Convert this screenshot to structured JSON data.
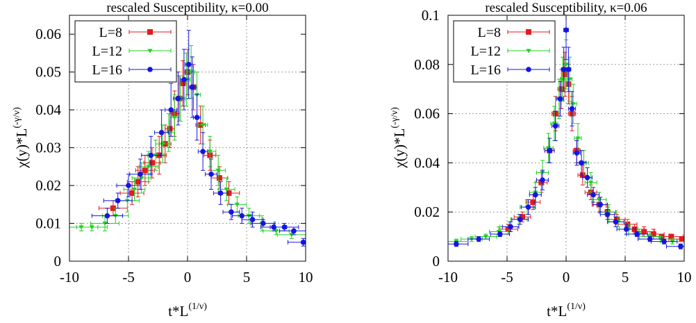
{
  "chart_data": [
    {
      "type": "scatter",
      "title": "rescaled Susceptibility, κ=0.00",
      "xlabel": "t*L",
      "xlabel_sup": "(1/ν)",
      "ylabel": "χ(y)*L",
      "ylabel_sup": "(-γ/ν)",
      "xlim": [
        -10,
        10
      ],
      "ylim": [
        0,
        0.065
      ],
      "xticks": [
        -10,
        -5,
        0,
        5,
        10
      ],
      "xtick_labels": [
        "-10",
        "-5",
        "0",
        "5",
        "10"
      ],
      "yticks": [
        0,
        0.01,
        0.02,
        0.03,
        0.04,
        0.05,
        0.06
      ],
      "ytick_labels": [
        "0",
        "0.01",
        "0.02",
        "0.03",
        "0.04",
        "0.05",
        "0.06"
      ],
      "grid": true,
      "legend_position": "top-left",
      "series": [
        {
          "name": "L=8",
          "color": "#e41a1c",
          "marker": "square",
          "x": [
            -6.3,
            -4.7,
            -4.2,
            -3.6,
            -3.0,
            -2.4,
            -1.9,
            -1.5,
            -1.1,
            -0.7,
            -0.4,
            0.0,
            0.5,
            1.1,
            1.9,
            2.7,
            3.5
          ],
          "y": [
            0.014,
            0.018,
            0.021,
            0.024,
            0.026,
            0.028,
            0.031,
            0.035,
            0.039,
            0.043,
            0.047,
            0.05,
            0.046,
            0.036,
            0.028,
            0.022,
            0.018
          ],
          "yerr": [
            0.002,
            0.003,
            0.004,
            0.004,
            0.004,
            0.005,
            0.005,
            0.005,
            0.006,
            0.006,
            0.006,
            0.006,
            0.006,
            0.005,
            0.004,
            0.003,
            0.003
          ],
          "xerr": [
            1.2,
            1.0,
            0.9,
            0.8,
            0.7,
            0.6,
            0.5,
            0.4,
            0.4,
            0.3,
            0.3,
            0.3,
            0.3,
            0.4,
            0.5,
            0.7,
            0.9
          ]
        },
        {
          "name": "L=12",
          "color": "#1dd11d",
          "marker": "triangle-down",
          "x": [
            -9.0,
            -8.1,
            -7.0,
            -6.1,
            -5.1,
            -4.5,
            -3.9,
            -3.3,
            -2.7,
            -2.1,
            -1.6,
            -1.1,
            -0.6,
            -0.1,
            0.3,
            0.8,
            1.3,
            1.9,
            2.6,
            3.3,
            4.2,
            5.2,
            6.3,
            7.5,
            8.8
          ],
          "y": [
            0.009,
            0.009,
            0.01,
            0.012,
            0.016,
            0.019,
            0.022,
            0.025,
            0.028,
            0.031,
            0.034,
            0.038,
            0.043,
            0.048,
            0.05,
            0.044,
            0.036,
            0.029,
            0.024,
            0.019,
            0.015,
            0.012,
            0.01,
            0.008,
            0.007
          ],
          "yerr": [
            0.001,
            0.001,
            0.002,
            0.002,
            0.003,
            0.003,
            0.004,
            0.004,
            0.004,
            0.005,
            0.005,
            0.006,
            0.006,
            0.007,
            0.007,
            0.006,
            0.005,
            0.004,
            0.004,
            0.003,
            0.002,
            0.002,
            0.002,
            0.001,
            0.001
          ],
          "xerr": [
            1.4,
            1.3,
            1.2,
            1.1,
            1.0,
            0.9,
            0.8,
            0.8,
            0.7,
            0.6,
            0.5,
            0.4,
            0.4,
            0.3,
            0.3,
            0.3,
            0.4,
            0.5,
            0.6,
            0.7,
            0.8,
            0.9,
            1.0,
            1.1,
            1.2
          ]
        },
        {
          "name": "L=16",
          "color": "#1515e0",
          "marker": "circle",
          "x": [
            -6.8,
            -5.9,
            -5.0,
            -4.0,
            -3.1,
            -2.2,
            -1.4,
            -0.8,
            -0.3,
            0.1,
            0.4,
            0.8,
            1.3,
            2.0,
            2.8,
            3.7,
            4.6,
            5.5,
            6.4,
            7.3,
            8.2,
            9.0,
            9.8
          ],
          "y": [
            0.012,
            0.016,
            0.02,
            0.023,
            0.028,
            0.034,
            0.04,
            0.043,
            0.048,
            0.052,
            0.046,
            0.038,
            0.029,
            0.023,
            0.018,
            0.013,
            0.012,
            0.011,
            0.01,
            0.009,
            0.009,
            0.008,
            0.005
          ],
          "yerr": [
            0.002,
            0.002,
            0.003,
            0.004,
            0.005,
            0.006,
            0.007,
            0.007,
            0.008,
            0.009,
            0.008,
            0.006,
            0.005,
            0.004,
            0.003,
            0.002,
            0.002,
            0.002,
            0.001,
            0.001,
            0.001,
            0.001,
            0.001
          ],
          "xerr": [
            1.3,
            1.2,
            1.0,
            0.9,
            0.8,
            0.6,
            0.5,
            0.4,
            0.3,
            0.3,
            0.3,
            0.3,
            0.4,
            0.5,
            0.6,
            0.7,
            0.8,
            0.9,
            1.0,
            1.1,
            1.2,
            1.2,
            1.3
          ]
        }
      ]
    },
    {
      "type": "scatter",
      "title": "rescaled Susceptibility, κ=0.06",
      "xlabel": "t*L",
      "xlabel_sup": "(1/ν)",
      "ylabel": "χ(y)*L",
      "ylabel_sup": "(-γ/ν)",
      "xlim": [
        -10,
        10
      ],
      "ylim": [
        0,
        0.1
      ],
      "xticks": [
        -10,
        -5,
        0,
        5,
        10
      ],
      "xtick_labels": [
        "-10",
        "-5",
        "0",
        "5",
        "10"
      ],
      "yticks": [
        0,
        0.02,
        0.04,
        0.06,
        0.08,
        0.1
      ],
      "ytick_labels": [
        "0",
        "0.02",
        "0.04",
        "0.06",
        "0.08",
        "0.1"
      ],
      "grid": true,
      "legend_position": "top-left",
      "series": [
        {
          "name": "L=8",
          "color": "#e41a1c",
          "marker": "square",
          "x": [
            -4.9,
            -3.7,
            -2.8,
            -2.1,
            -1.4,
            -0.9,
            -0.4,
            -0.1,
            0.2,
            0.5,
            0.9,
            1.4,
            2.1,
            2.8,
            3.5,
            4.3,
            5.2,
            5.8,
            6.6,
            7.4,
            8.1,
            8.9,
            9.8
          ],
          "y": [
            0.013,
            0.018,
            0.024,
            0.032,
            0.045,
            0.06,
            0.07,
            0.076,
            0.072,
            0.06,
            0.045,
            0.035,
            0.028,
            0.023,
            0.02,
            0.017,
            0.015,
            0.013,
            0.012,
            0.011,
            0.01,
            0.01,
            0.009
          ],
          "yerr": [
            0.002,
            0.002,
            0.003,
            0.004,
            0.005,
            0.007,
            0.008,
            0.009,
            0.008,
            0.007,
            0.005,
            0.004,
            0.003,
            0.003,
            0.002,
            0.002,
            0.002,
            0.002,
            0.002,
            0.002,
            0.001,
            0.001,
            0.001
          ],
          "xerr": [
            0.8,
            0.7,
            0.6,
            0.5,
            0.4,
            0.3,
            0.3,
            0.2,
            0.2,
            0.3,
            0.3,
            0.4,
            0.5,
            0.6,
            0.7,
            0.7,
            0.8,
            0.8,
            0.9,
            0.9,
            1.0,
            1.0,
            1.1
          ]
        },
        {
          "name": "L=12",
          "color": "#1dd11d",
          "marker": "triangle-down",
          "x": [
            -9.3,
            -8.0,
            -6.8,
            -5.7,
            -4.8,
            -4.0,
            -3.3,
            -2.6,
            -2.0,
            -1.5,
            -1.0,
            -0.6,
            -0.3,
            0.0,
            0.3,
            0.6,
            1.0,
            1.5,
            2.1,
            2.8,
            3.6,
            4.4,
            5.3,
            6.2,
            7.1,
            8.0,
            9.0
          ],
          "y": [
            0.008,
            0.009,
            0.01,
            0.012,
            0.014,
            0.017,
            0.022,
            0.028,
            0.036,
            0.046,
            0.056,
            0.066,
            0.074,
            0.08,
            0.074,
            0.064,
            0.05,
            0.04,
            0.032,
            0.025,
            0.02,
            0.016,
            0.013,
            0.011,
            0.01,
            0.009,
            0.008
          ],
          "yerr": [
            0.001,
            0.001,
            0.001,
            0.002,
            0.002,
            0.002,
            0.003,
            0.004,
            0.005,
            0.006,
            0.007,
            0.008,
            0.009,
            0.01,
            0.009,
            0.008,
            0.006,
            0.005,
            0.004,
            0.003,
            0.003,
            0.002,
            0.002,
            0.002,
            0.001,
            0.001,
            0.001
          ],
          "xerr": [
            1.0,
            0.9,
            0.9,
            0.8,
            0.8,
            0.7,
            0.6,
            0.5,
            0.5,
            0.4,
            0.3,
            0.3,
            0.2,
            0.2,
            0.2,
            0.3,
            0.3,
            0.4,
            0.5,
            0.6,
            0.7,
            0.8,
            0.8,
            0.9,
            0.9,
            1.0,
            1.0
          ]
        },
        {
          "name": "L=16",
          "color": "#1515e0",
          "marker": "circle",
          "x": [
            -9.3,
            -7.4,
            -5.6,
            -4.7,
            -3.9,
            -3.2,
            -2.6,
            -2.0,
            -1.4,
            -0.9,
            -0.5,
            -0.2,
            0.0,
            0.2,
            0.5,
            0.9,
            1.3,
            1.8,
            2.3,
            2.9,
            3.5,
            4.2,
            5.1,
            6.0,
            7.1,
            8.3,
            9.7
          ],
          "y": [
            0.007,
            0.009,
            0.011,
            0.014,
            0.017,
            0.022,
            0.027,
            0.033,
            0.045,
            0.055,
            0.066,
            0.078,
            0.094,
            0.078,
            0.062,
            0.044,
            0.04,
            0.034,
            0.027,
            0.023,
            0.019,
            0.016,
            0.013,
            0.011,
            0.009,
            0.008,
            0.006
          ],
          "yerr": [
            0.001,
            0.001,
            0.001,
            0.002,
            0.002,
            0.003,
            0.003,
            0.004,
            0.005,
            0.006,
            0.007,
            0.009,
            0.012,
            0.009,
            0.007,
            0.005,
            0.005,
            0.004,
            0.003,
            0.003,
            0.002,
            0.002,
            0.002,
            0.001,
            0.001,
            0.001,
            0.001
          ],
          "xerr": [
            1.0,
            0.9,
            0.8,
            0.7,
            0.7,
            0.6,
            0.5,
            0.5,
            0.4,
            0.3,
            0.3,
            0.2,
            0.2,
            0.2,
            0.3,
            0.3,
            0.4,
            0.4,
            0.5,
            0.6,
            0.6,
            0.7,
            0.8,
            0.9,
            1.0,
            1.1,
            1.2
          ]
        }
      ]
    }
  ]
}
